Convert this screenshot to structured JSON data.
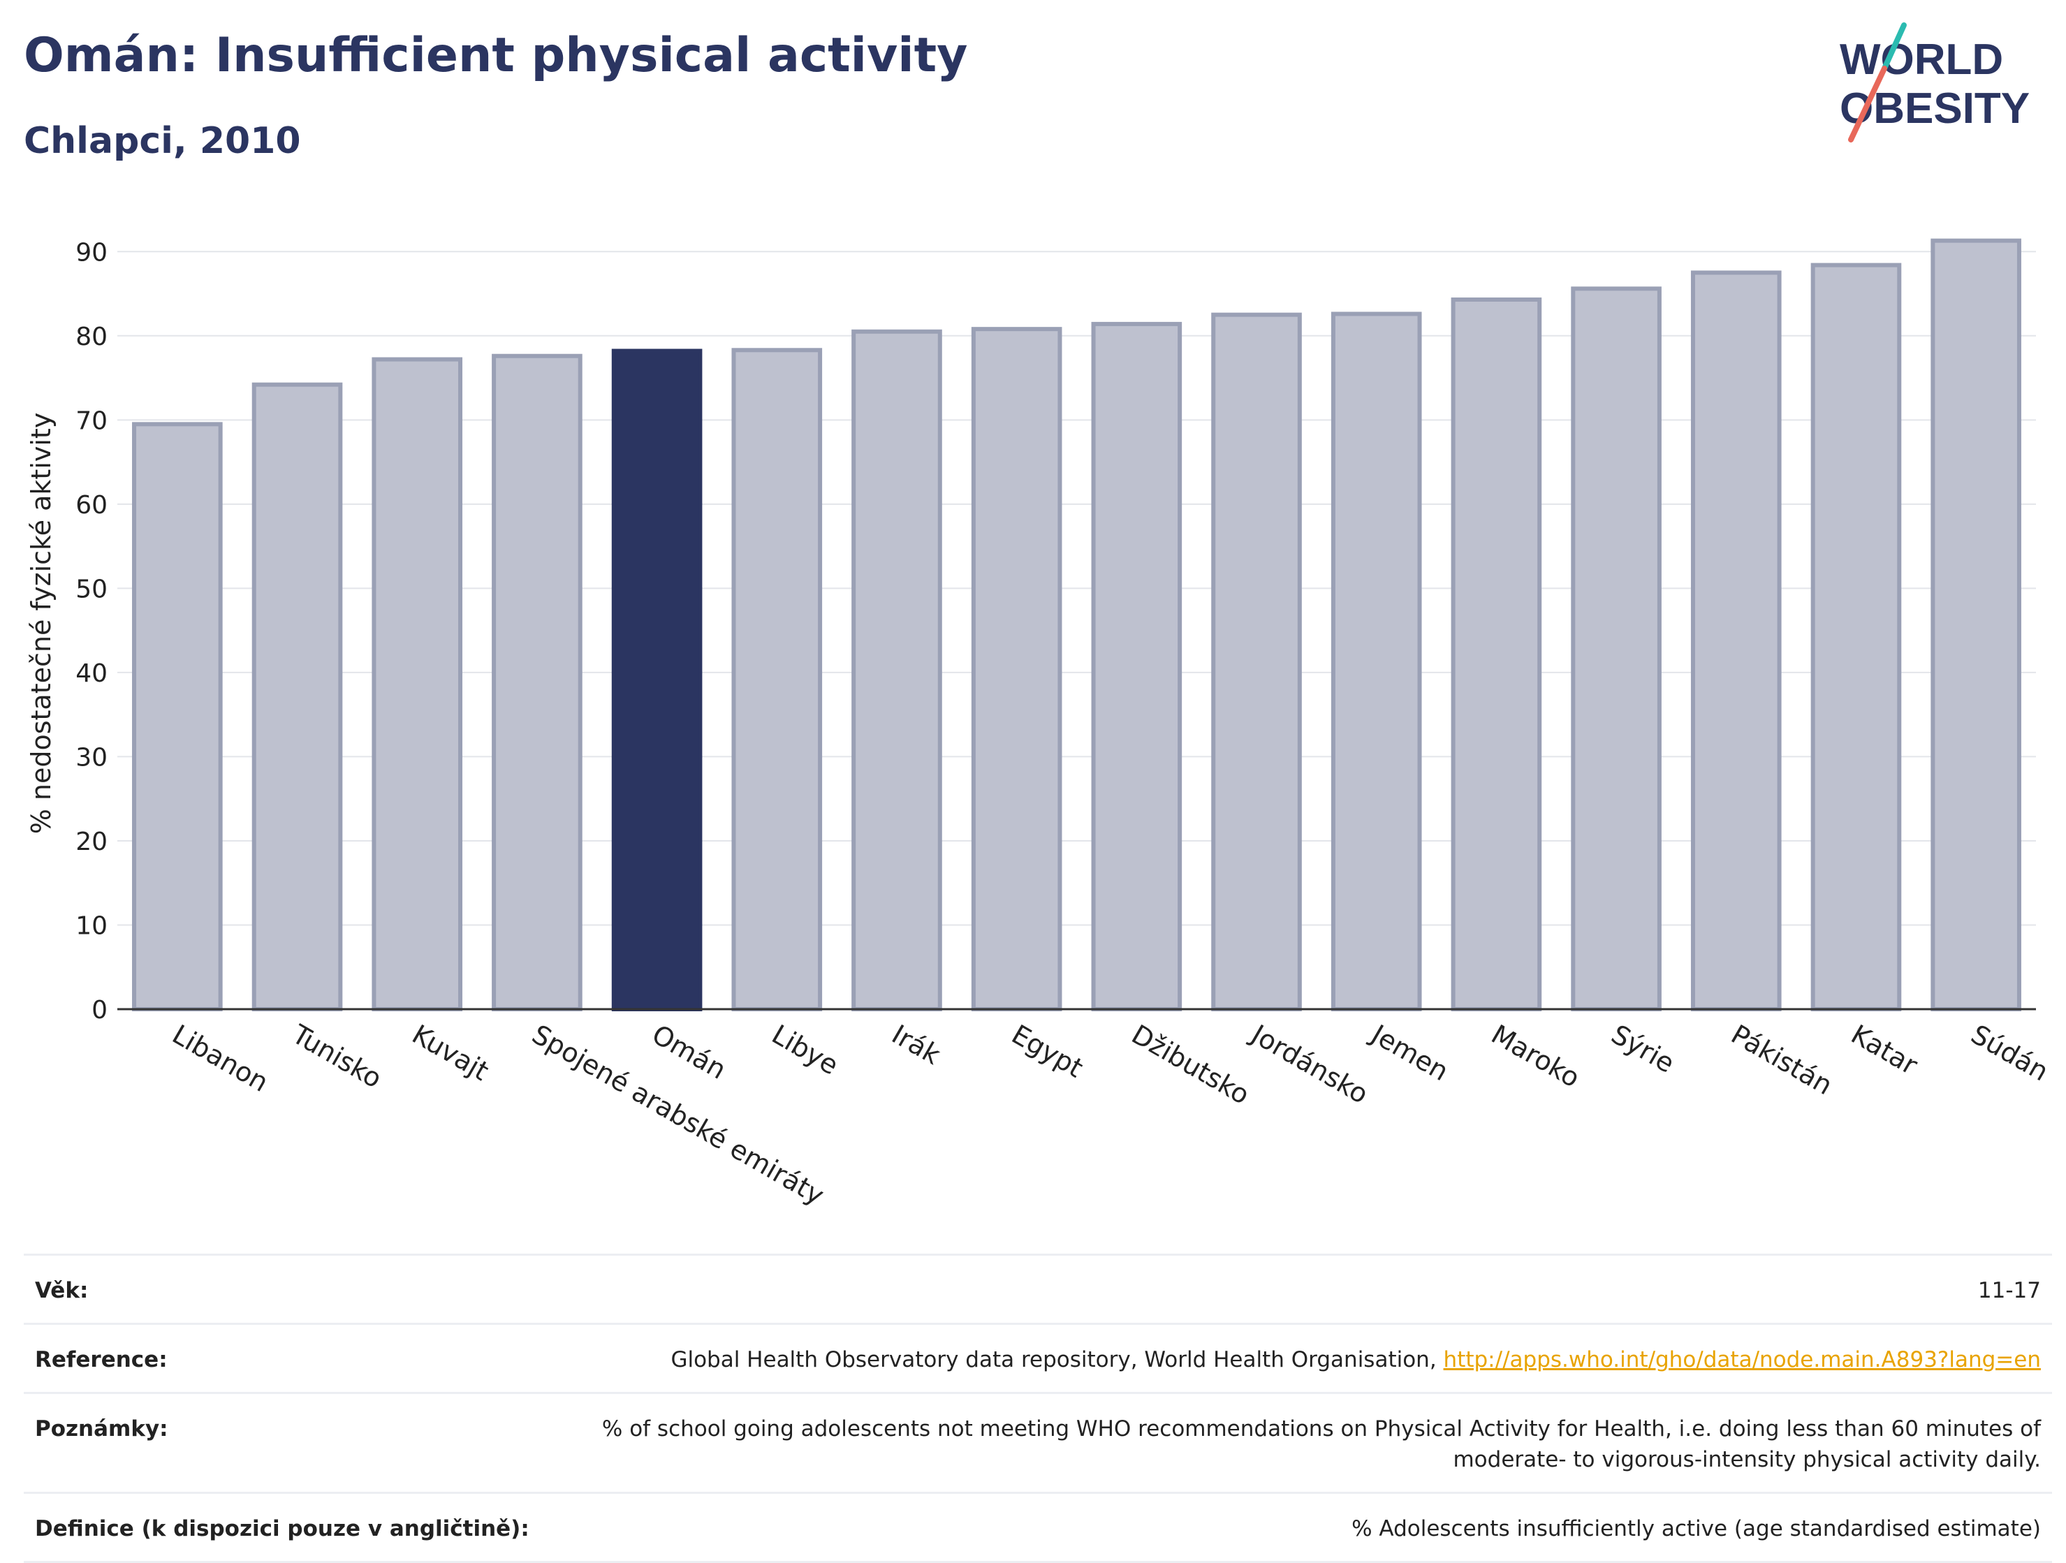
{
  "header": {
    "title": "Omán: Insufficient physical activity",
    "subtitle": "Chlapci, 2010"
  },
  "logo": {
    "line1": "WORLD",
    "line2": "OBESITY"
  },
  "chart_data": {
    "type": "bar",
    "title": "Omán: Insufficient physical activity",
    "subtitle": "Chlapci, 2010",
    "ylabel": "% nedostatečné fyzické aktivity",
    "xlabel": "",
    "ylim": [
      0,
      95
    ],
    "yticks": [
      0,
      10,
      20,
      30,
      40,
      50,
      60,
      70,
      80,
      90
    ],
    "grid": true,
    "categories": [
      "Libanon",
      "Tunisko",
      "Kuvajt",
      "Spojené arabské emiráty",
      "Omán",
      "Libye",
      "Irák",
      "Egypt",
      "Džibutsko",
      "Jordánsko",
      "Jemen",
      "Maroko",
      "Sýrie",
      "Pákistán",
      "Katar",
      "Súdán"
    ],
    "values": [
      69.5,
      74.2,
      77.2,
      77.6,
      78.2,
      78.3,
      80.5,
      80.8,
      81.4,
      82.5,
      82.6,
      84.3,
      85.6,
      87.5,
      88.4,
      91.3
    ],
    "highlight": "Omán",
    "colors": {
      "bar": "#bec1cf",
      "bar_border": "#9aa0b5",
      "highlight": "#2b3561"
    }
  },
  "info": {
    "rows": [
      {
        "label": "Věk:",
        "value": "11-17"
      },
      {
        "label": "Reference:",
        "value": "Global Health Observatory data repository, World Health Organisation, ",
        "link": "http://apps.who.int/gho/data/node.main.A893?lang=en"
      },
      {
        "label": "Poznámky:",
        "value": "% of school going adolescents not meeting WHO recommendations on Physical Activity for Health, i.e. doing less than 60 minutes of moderate- to vigorous-intensity physical activity daily."
      },
      {
        "label": "Definice (k dispozici pouze v angličtině):",
        "value": "% Adolescents insufficiently active (age standardised estimate)"
      }
    ]
  }
}
